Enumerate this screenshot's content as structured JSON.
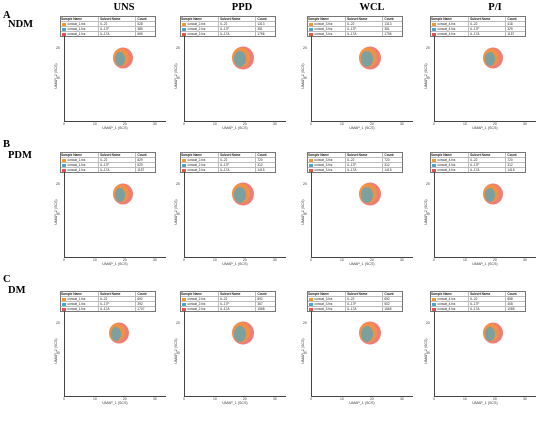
{
  "column_headers": [
    "UNS",
    "PPD",
    "WCL",
    "P/I"
  ],
  "rows": [
    {
      "letter": "A",
      "label": "NDM"
    },
    {
      "letter": "B",
      "label": "PDM"
    },
    {
      "letter": "C",
      "label": "DM"
    }
  ],
  "axes": {
    "x_label": "UMAP_1 (SCS)",
    "y_label": "UMAP_2 (SCS)",
    "x_ticks": [
      "0",
      "10",
      "20",
      "30"
    ],
    "y_ticks": [
      "10",
      "20"
    ]
  },
  "legend_header": {
    "sample": "Sample Name",
    "subset": "Subset Name",
    "count": "Count"
  },
  "series_colors": [
    "#f29a2f",
    "#49a6c8",
    "#e8524b"
  ],
  "panels": [
    [
      {
        "legend": [
          [
            "concat_1.fcs",
            "IL-22",
            "528"
          ],
          [
            "concat_1.fcs",
            "IL-17F",
            "389"
          ],
          [
            "concat_1.fcs",
            "IL-17A",
            "665"
          ]
        ]
      },
      {
        "legend": [
          [
            "concat_2.fcs",
            "IL-22",
            "1313"
          ],
          [
            "concat_2.fcs",
            "IL-17F",
            "351"
          ],
          [
            "concat_2.fcs",
            "IL-17A",
            "1796"
          ]
        ]
      },
      {
        "legend": [
          [
            "concat_3.fcs",
            "IL-22",
            "1313"
          ],
          [
            "concat_3.fcs",
            "IL-17F",
            "351"
          ],
          [
            "concat_3.fcs",
            "IL-17A",
            "1796"
          ]
        ]
      },
      {
        "legend": [
          [
            "concat_4.fcs",
            "IL-22",
            "418"
          ],
          [
            "concat_4.fcs",
            "IL-17F",
            "329"
          ],
          [
            "concat_4.fcs",
            "IL-17A",
            "1157"
          ]
        ]
      }
    ],
    [
      {
        "legend": [
          [
            "concat_1.fcs",
            "IL-22",
            "829"
          ],
          [
            "concat_1.fcs",
            "IL-17F",
            "529"
          ],
          [
            "concat_1.fcs",
            "IL-17A",
            "1157"
          ]
        ]
      },
      {
        "legend": [
          [
            "concat_2.fcs",
            "IL-22",
            "720"
          ],
          [
            "concat_2.fcs",
            "IL-17F",
            "312"
          ],
          [
            "concat_2.fcs",
            "IL-17A",
            "1415"
          ]
        ]
      },
      {
        "legend": [
          [
            "concat_3.fcs",
            "IL-22",
            "720"
          ],
          [
            "concat_3.fcs",
            "IL-17F",
            "312"
          ],
          [
            "concat_3.fcs",
            "IL-17A",
            "1415"
          ]
        ]
      },
      {
        "legend": [
          [
            "concat_4.fcs",
            "IL-22",
            "720"
          ],
          [
            "concat_4.fcs",
            "IL-17F",
            "312"
          ],
          [
            "concat_4.fcs",
            "IL-17A",
            "1415"
          ]
        ]
      }
    ],
    [
      {
        "legend": [
          [
            "concat_1.fcs",
            "IL-22",
            "692"
          ],
          [
            "concat_1.fcs",
            "IL-17F",
            "392"
          ],
          [
            "concat_1.fcs",
            "IL-17A",
            "1707"
          ]
        ]
      },
      {
        "legend": [
          [
            "concat_2.fcs",
            "IL-22",
            "892"
          ],
          [
            "concat_2.fcs",
            "IL-17F",
            "367"
          ],
          [
            "concat_2.fcs",
            "IL-17A",
            "1968"
          ]
        ]
      },
      {
        "legend": [
          [
            "concat_3.fcs",
            "IL-22",
            "692"
          ],
          [
            "concat_3.fcs",
            "IL-17F",
            "502"
          ],
          [
            "concat_3.fcs",
            "IL-17A",
            "1665"
          ]
        ]
      },
      {
        "legend": [
          [
            "concat_4.fcs",
            "IL-22",
            "858"
          ],
          [
            "concat_4.fcs",
            "IL-17F",
            "408"
          ],
          [
            "concat_4.fcs",
            "IL-17A",
            "1085"
          ]
        ]
      }
    ]
  ]
}
